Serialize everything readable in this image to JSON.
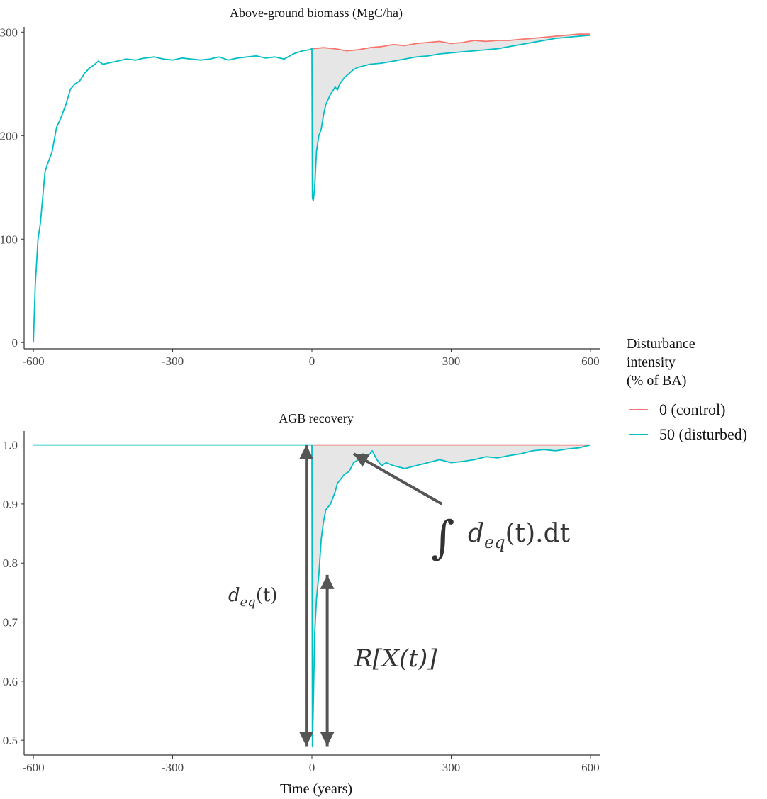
{
  "chart_data": [
    {
      "type": "line",
      "title": "Above-ground biomass (MgC/ha)",
      "xlabel": "",
      "ylabel": "",
      "xlim": [
        -620,
        620
      ],
      "ylim": [
        -6,
        305
      ],
      "x_ticks": [
        -600,
        -300,
        0,
        300,
        600
      ],
      "x_tick_labels": [
        "-600",
        "-300",
        "0",
        "300",
        "600"
      ],
      "y_ticks": [
        0,
        100,
        200,
        300
      ],
      "y_tick_labels": [
        "0",
        "100",
        "200",
        "300"
      ],
      "grid": false,
      "shaded_area_between_series": true,
      "series": [
        {
          "name": "0 (control)",
          "color": "#F8766D",
          "x": [
            0,
            25,
            50,
            75,
            100,
            125,
            150,
            175,
            200,
            225,
            250,
            275,
            300,
            325,
            350,
            375,
            400,
            425,
            450,
            475,
            500,
            525,
            550,
            575,
            600
          ],
          "y": [
            284,
            285,
            284,
            282,
            283,
            285,
            286,
            288,
            287,
            289,
            290,
            291,
            289,
            290,
            292,
            291,
            292,
            292,
            293,
            294,
            295,
            296,
            297,
            298,
            298
          ]
        },
        {
          "name": "50 (disturbed)",
          "color": "#00BFC4",
          "x": [
            -600,
            -596,
            -590,
            -585,
            -580,
            -575,
            -570,
            -565,
            -560,
            -550,
            -540,
            -530,
            -520,
            -510,
            -500,
            -490,
            -480,
            -470,
            -460,
            -450,
            -440,
            -420,
            -400,
            -380,
            -360,
            -340,
            -320,
            -300,
            -280,
            -260,
            -240,
            -220,
            -200,
            -180,
            -160,
            -140,
            -120,
            -100,
            -80,
            -60,
            -40,
            -20,
            -5,
            0,
            1,
            3,
            6,
            10,
            15,
            20,
            25,
            30,
            35,
            40,
            45,
            50,
            55,
            60,
            70,
            80,
            90,
            100,
            125,
            150,
            175,
            200,
            225,
            250,
            275,
            300,
            325,
            350,
            375,
            400,
            425,
            450,
            475,
            500,
            525,
            550,
            575,
            600
          ],
          "y": [
            0,
            55,
            100,
            115,
            140,
            165,
            172,
            178,
            184,
            208,
            218,
            230,
            245,
            250,
            253,
            260,
            265,
            268,
            272,
            269,
            270,
            272,
            274,
            273,
            275,
            276,
            274,
            273,
            275,
            274,
            273,
            274,
            276,
            273,
            275,
            276,
            277,
            275,
            276,
            274,
            279,
            282,
            283,
            284,
            140,
            137,
            150,
            185,
            200,
            206,
            220,
            230,
            235,
            240,
            243,
            247,
            244,
            250,
            256,
            260,
            264,
            266,
            269,
            270,
            272,
            274,
            276,
            277,
            279,
            280,
            281,
            282,
            283,
            284,
            286,
            288,
            290,
            292,
            294,
            295,
            296,
            297
          ]
        }
      ]
    },
    {
      "type": "line",
      "title": "AGB recovery",
      "xlabel": "Time (years)",
      "ylabel": "",
      "xlim": [
        -620,
        620
      ],
      "ylim": [
        0.475,
        1.0235
      ],
      "x_ticks": [
        -600,
        -300,
        0,
        300,
        600
      ],
      "x_tick_labels": [
        "-600",
        "-300",
        "0",
        "300",
        "600"
      ],
      "y_ticks": [
        0.5,
        0.6,
        0.7,
        0.8,
        0.9,
        1.0
      ],
      "y_tick_labels": [
        "0.5",
        "0.6",
        "0.7",
        "0.8",
        "0.9",
        "1.0"
      ],
      "grid": false,
      "shaded_area_between_series": true,
      "series": [
        {
          "name": "0 (control)",
          "color": "#F8766D",
          "x": [
            0,
            600
          ],
          "y": [
            1.0,
            1.0
          ]
        },
        {
          "name": "50 (disturbed)",
          "color": "#00BFC4",
          "x": [
            -600,
            0,
            1,
            3,
            6,
            10,
            15,
            20,
            25,
            30,
            35,
            40,
            45,
            50,
            55,
            60,
            70,
            80,
            90,
            100,
            110,
            120,
            130,
            140,
            150,
            160,
            175,
            200,
            225,
            250,
            275,
            300,
            325,
            350,
            375,
            400,
            425,
            450,
            475,
            500,
            525,
            550,
            575,
            600
          ],
          "y": [
            1.0,
            1.0,
            0.49,
            0.56,
            0.68,
            0.74,
            0.78,
            0.84,
            0.87,
            0.89,
            0.895,
            0.9,
            0.91,
            0.92,
            0.935,
            0.94,
            0.95,
            0.955,
            0.97,
            0.975,
            0.985,
            0.98,
            0.99,
            0.975,
            0.965,
            0.97,
            0.965,
            0.96,
            0.965,
            0.97,
            0.975,
            0.97,
            0.972,
            0.975,
            0.98,
            0.978,
            0.982,
            0.985,
            0.99,
            0.992,
            0.99,
            0.993,
            0.995,
            1.0
          ]
        }
      ],
      "annotations": [
        {
          "kind": "arrow",
          "from": [
            -12,
            1.0
          ],
          "to": [
            -12,
            0.49
          ],
          "both_ends": true
        },
        {
          "kind": "arrow",
          "from": [
            33,
            0.78
          ],
          "to": [
            33,
            0.49
          ],
          "both_ends": true
        },
        {
          "kind": "arrow",
          "from": [
            280,
            0.9
          ],
          "to": [
            90,
            0.985
          ],
          "both_ends": false
        },
        {
          "kind": "label",
          "text": "d_eq(t)",
          "x": -165,
          "y": 0.75
        },
        {
          "kind": "label",
          "text": "R[X(t)]",
          "x": 170,
          "y": 0.605
        },
        {
          "kind": "label",
          "text": "∫ d_eq(t).dt",
          "x": 355,
          "y": 0.9
        }
      ]
    }
  ],
  "legend": {
    "title_lines": [
      "Disturbance",
      "intensity",
      "(% of BA)"
    ],
    "placement": "right",
    "entries": [
      {
        "label": "0 (control)",
        "color": "#F8766D"
      },
      {
        "label": "50 (disturbed)",
        "color": "#00BFC4"
      }
    ]
  },
  "annotation_text": {
    "deq_base": "d",
    "deq_sub": "eq",
    "deq_tail": "(t)",
    "rx": "R[X(t)]",
    "integral_sign": "∫",
    "integral_base": "d",
    "integral_sub": "eq",
    "integral_tail": "(t).dt"
  },
  "colors": {
    "control": "#F8766D",
    "disturbed": "#00BFC4",
    "fill": "#e6e6e6",
    "arrow": "#555555",
    "axis": "#333333"
  }
}
